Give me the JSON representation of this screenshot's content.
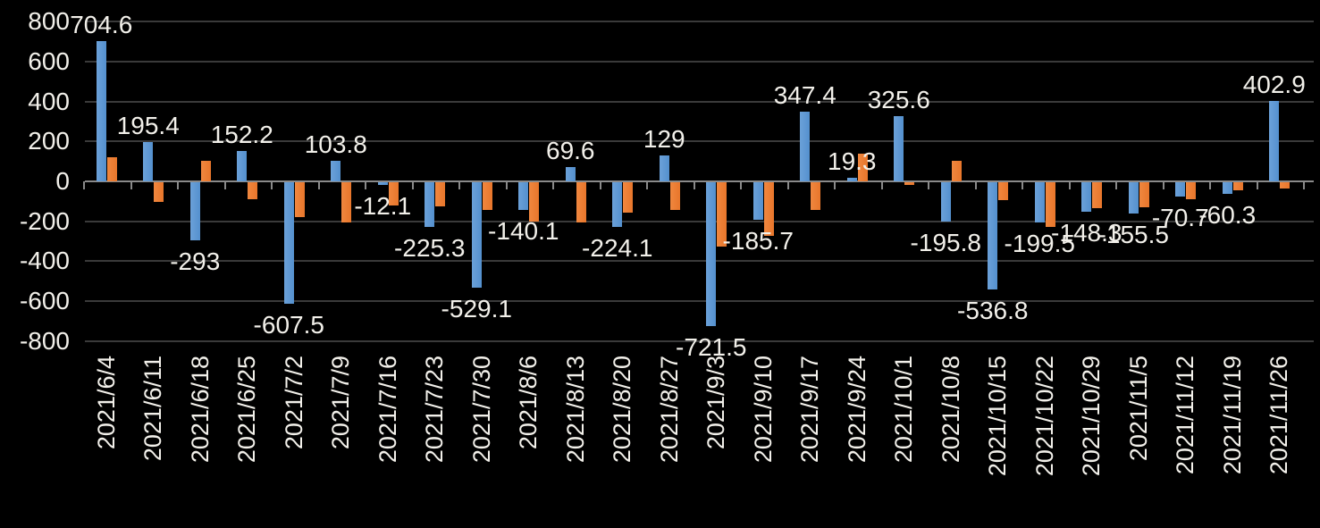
{
  "chart_data": {
    "type": "bar",
    "title": "",
    "legend": "none",
    "grid": true,
    "background_color": "#000000",
    "text_color": "#f2f0ea",
    "categories": [
      "2021/6/4",
      "2021/6/11",
      "2021/6/18",
      "2021/6/25",
      "2021/7/2",
      "2021/7/9",
      "2021/7/16",
      "2021/7/23",
      "2021/7/30",
      "2021/8/6",
      "2021/8/13",
      "2021/8/20",
      "2021/8/27",
      "2021/9/3",
      "2021/9/10",
      "2021/9/17",
      "2021/9/24",
      "2021/10/1",
      "2021/10/8",
      "2021/10/15",
      "2021/10/22",
      "2021/10/29",
      "2021/11/5",
      "2021/11/12",
      "2021/11/19",
      "2021/11/26"
    ],
    "series": [
      {
        "id": "series-1-blue",
        "color": "#5B9BD5",
        "values": [
          704.6,
          195.4,
          -293,
          152.2,
          -607.5,
          103.8,
          -12.1,
          -225.3,
          -529.1,
          -140.1,
          69.6,
          -224.1,
          129,
          -721.5,
          -185.7,
          347.4,
          19.3,
          325.6,
          -195.8,
          -536.8,
          -199.5,
          -148.3,
          -155.5,
          -70.7,
          -60.3,
          402.9
        ],
        "data_labels": [
          "704.6",
          "195.4",
          "-293",
          "152.2",
          "-607.5",
          "103.8",
          "-12.1",
          "-225.3",
          "-529.1",
          "-140.1",
          "69.6",
          "-224.1",
          "129",
          "-721.5",
          "-185.7",
          "347.4",
          "19.3",
          "325.6",
          "-195.8",
          "-536.8",
          "-199.5",
          "-148.3",
          "-155.5",
          "-70.7",
          "-60.3",
          "402.9"
        ]
      },
      {
        "id": "series-2-orange",
        "color": "#ED7D31",
        "values": [
          120,
          -100,
          105,
          -85,
          -175,
          -200,
          -115,
          -120,
          -140,
          -195,
          -200,
          -150,
          -140,
          -320,
          -270,
          -140,
          140,
          -15,
          105,
          -90,
          -225,
          -130,
          -125,
          -85,
          -40,
          -30
        ],
        "data_labels": null
      }
    ],
    "y_axis": {
      "min": -800,
      "max": 800,
      "step": 200,
      "tick_labels": [
        "800",
        "600",
        "400",
        "200",
        "0",
        "-200",
        "-400",
        "-600",
        "-800"
      ]
    },
    "x_axis": {
      "label_rotation_deg": 90
    }
  }
}
